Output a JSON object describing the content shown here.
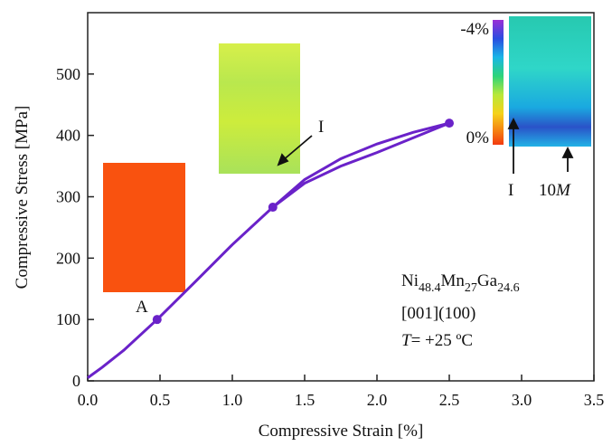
{
  "chart_data": {
    "type": "line",
    "x_label": "Compressive Strain [%]",
    "y_label": "Compressive Stress [MPa]",
    "xlim": [
      0,
      3.5
    ],
    "ylim": [
      0,
      600
    ],
    "xticks": [
      {
        "value": 0,
        "label": "0.0"
      },
      {
        "value": 0.5,
        "label": "0.5"
      },
      {
        "value": 1,
        "label": "1.0"
      },
      {
        "value": 1.5,
        "label": "1.5"
      },
      {
        "value": 2,
        "label": "2.0"
      },
      {
        "value": 2.5,
        "label": "2.5"
      },
      {
        "value": 3,
        "label": "3.0"
      },
      {
        "value": 3.5,
        "label": "3.5"
      }
    ],
    "yticks": [
      0,
      100,
      200,
      300,
      400,
      500
    ],
    "color": "#6a22c9",
    "series": [
      {
        "x": [
          0,
          0.1,
          0.25,
          0.48,
          0.75,
          1.0,
          1.28,
          1.5,
          1.75,
          2.0,
          2.25,
          2.5
        ],
        "values": [
          5,
          22,
          50,
          100,
          163,
          222,
          283,
          322,
          350,
          372,
          396,
          420
        ]
      },
      {
        "x": [
          2.5,
          2.25,
          2.0,
          1.75,
          1.5,
          1.28
        ],
        "values": [
          420,
          405,
          386,
          362,
          328,
          283
        ]
      }
    ],
    "markers": {
      "x": [
        0.48,
        1.28,
        2.5
      ],
      "values": [
        100,
        283,
        420
      ]
    },
    "annotations": {
      "point_a": "A",
      "point_i": "I",
      "arrow_i": "I",
      "arrow_m": [
        "10",
        "M"
      ],
      "scale_top": "-4%",
      "scale_bottom": "0%",
      "composition": [
        "Ni",
        "48.4",
        "Mn",
        "27",
        "Ga",
        "24.6"
      ],
      "orientation": "[001](100)",
      "temperature": [
        "T",
        "= +25 ºC"
      ]
    }
  }
}
